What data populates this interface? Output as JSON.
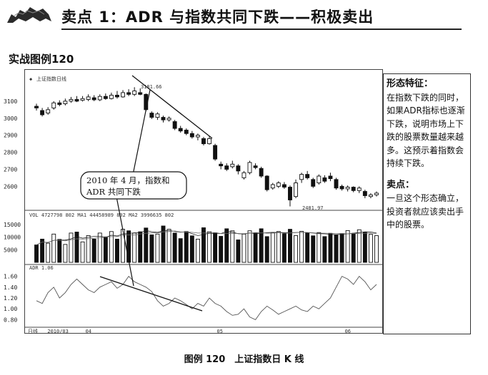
{
  "header": {
    "title": "卖点 1：ADR 与指数共同下跌——积极卖出"
  },
  "section_label": "实战图例120",
  "caption": "图例 120　上证指数日 K 线",
  "callout": {
    "heading1": "形态特征：",
    "body1": "在指数下跌的同时，如果ADR指标也逐渐下跌，说明市场上下跌的股票数量越来越多。这预示着指数会持续下跌。",
    "heading2": "卖点：",
    "body2": "一旦这个形态确立，投资者就应该卖出手中的股票。"
  },
  "chart": {
    "index_label": "上证指数日线",
    "peak_label": "3181.66",
    "trough_label": "2481.97",
    "annotation_line1": "2010 年 4 月，指数和",
    "annotation_line2": "ADR 共同下跌",
    "volume_info": "VOL 4727798 802   MA1 44458989 802   MA2 3996635 802",
    "adr_info": "ADR 1.06",
    "bottom_label": "日线",
    "x_labels": [
      "2010/03",
      "04",
      "05",
      "06"
    ]
  },
  "chart_data": [
    {
      "type": "candlestick",
      "title": "上证指数日线",
      "ylim": [
        2480,
        3200
      ],
      "yticks": [
        2600,
        2700,
        2800,
        2900,
        3000,
        3100
      ],
      "ytick_labels": [
        "2600",
        "2700",
        "2800",
        "2900",
        "3000",
        "3100"
      ],
      "candles": [
        {
          "o": 3070,
          "c": 3060,
          "h": 3085,
          "l": 3045
        },
        {
          "o": 3045,
          "c": 3020,
          "h": 3060,
          "l": 3010
        },
        {
          "o": 3030,
          "c": 3050,
          "h": 3065,
          "l": 3020
        },
        {
          "o": 3060,
          "c": 3090,
          "h": 3100,
          "l": 3050
        },
        {
          "o": 3090,
          "c": 3080,
          "h": 3105,
          "l": 3070
        },
        {
          "o": 3085,
          "c": 3100,
          "h": 3115,
          "l": 3075
        },
        {
          "o": 3100,
          "c": 3110,
          "h": 3125,
          "l": 3090
        },
        {
          "o": 3110,
          "c": 3100,
          "h": 3130,
          "l": 3095
        },
        {
          "o": 3105,
          "c": 3115,
          "h": 3130,
          "l": 3098
        },
        {
          "o": 3110,
          "c": 3125,
          "h": 3140,
          "l": 3100
        },
        {
          "o": 3120,
          "c": 3108,
          "h": 3135,
          "l": 3100
        },
        {
          "o": 3108,
          "c": 3128,
          "h": 3140,
          "l": 3100
        },
        {
          "o": 3128,
          "c": 3115,
          "h": 3145,
          "l": 3108
        },
        {
          "o": 3115,
          "c": 3135,
          "h": 3150,
          "l": 3110
        },
        {
          "o": 3135,
          "c": 3125,
          "h": 3160,
          "l": 3115
        },
        {
          "o": 3125,
          "c": 3150,
          "h": 3165,
          "l": 3120
        },
        {
          "o": 3150,
          "c": 3140,
          "h": 3170,
          "l": 3130
        },
        {
          "o": 3140,
          "c": 3160,
          "h": 3182,
          "l": 3130
        },
        {
          "o": 3150,
          "c": 3140,
          "h": 3175,
          "l": 3135
        },
        {
          "o": 3140,
          "c": 3050,
          "h": 3145,
          "l": 3040
        },
        {
          "o": 3030,
          "c": 3005,
          "h": 3040,
          "l": 2995
        },
        {
          "o": 3005,
          "c": 3025,
          "h": 3035,
          "l": 2990
        },
        {
          "o": 3005,
          "c": 2990,
          "h": 3015,
          "l": 2975
        },
        {
          "o": 2990,
          "c": 3000,
          "h": 3010,
          "l": 2980
        },
        {
          "o": 2980,
          "c": 2940,
          "h": 2990,
          "l": 2930
        },
        {
          "o": 2940,
          "c": 2925,
          "h": 2955,
          "l": 2915
        },
        {
          "o": 2930,
          "c": 2910,
          "h": 2940,
          "l": 2900
        },
        {
          "o": 2910,
          "c": 2890,
          "h": 2925,
          "l": 2880
        },
        {
          "o": 2890,
          "c": 2900,
          "h": 2910,
          "l": 2870
        },
        {
          "o": 2880,
          "c": 2850,
          "h": 2890,
          "l": 2840
        },
        {
          "o": 2850,
          "c": 2880,
          "h": 2895,
          "l": 2845
        },
        {
          "o": 2840,
          "c": 2760,
          "h": 2850,
          "l": 2750
        },
        {
          "o": 2730,
          "c": 2720,
          "h": 2745,
          "l": 2700
        },
        {
          "o": 2720,
          "c": 2700,
          "h": 2735,
          "l": 2690
        },
        {
          "o": 2715,
          "c": 2730,
          "h": 2750,
          "l": 2705
        },
        {
          "o": 2720,
          "c": 2690,
          "h": 2730,
          "l": 2670
        },
        {
          "o": 2650,
          "c": 2680,
          "h": 2690,
          "l": 2640
        },
        {
          "o": 2680,
          "c": 2740,
          "h": 2750,
          "l": 2670
        },
        {
          "o": 2720,
          "c": 2710,
          "h": 2735,
          "l": 2700
        },
        {
          "o": 2705,
          "c": 2660,
          "h": 2715,
          "l": 2650
        },
        {
          "o": 2660,
          "c": 2580,
          "h": 2665,
          "l": 2570
        },
        {
          "o": 2590,
          "c": 2610,
          "h": 2620,
          "l": 2580
        },
        {
          "o": 2600,
          "c": 2620,
          "h": 2630,
          "l": 2590
        },
        {
          "o": 2610,
          "c": 2595,
          "h": 2625,
          "l": 2585
        },
        {
          "o": 2595,
          "c": 2520,
          "h": 2605,
          "l": 2482
        },
        {
          "o": 2540,
          "c": 2620,
          "h": 2640,
          "l": 2530
        },
        {
          "o": 2640,
          "c": 2670,
          "h": 2680,
          "l": 2620
        },
        {
          "o": 2670,
          "c": 2650,
          "h": 2690,
          "l": 2640
        },
        {
          "o": 2640,
          "c": 2600,
          "h": 2650,
          "l": 2590
        },
        {
          "o": 2620,
          "c": 2660,
          "h": 2670,
          "l": 2610
        },
        {
          "o": 2650,
          "c": 2630,
          "h": 2665,
          "l": 2620
        },
        {
          "o": 2660,
          "c": 2645,
          "h": 2680,
          "l": 2630
        },
        {
          "o": 2640,
          "c": 2590,
          "h": 2650,
          "l": 2580
        },
        {
          "o": 2600,
          "c": 2585,
          "h": 2610,
          "l": 2575
        },
        {
          "o": 2585,
          "c": 2595,
          "h": 2605,
          "l": 2570
        },
        {
          "o": 2595,
          "c": 2575,
          "h": 2600,
          "l": 2565
        },
        {
          "o": 2575,
          "c": 2590,
          "h": 2600,
          "l": 2560
        },
        {
          "o": 2570,
          "c": 2545,
          "h": 2580,
          "l": 2530
        },
        {
          "o": 2540,
          "c": 2550,
          "h": 2560,
          "l": 2530
        },
        {
          "o": 2550,
          "c": 2560,
          "h": 2570,
          "l": 2540
        }
      ]
    },
    {
      "type": "bar",
      "title": "VOL",
      "ylim": [
        0,
        17500
      ],
      "yticks": [
        5000,
        10000,
        15000
      ],
      "ytick_labels": [
        "5000",
        "10000",
        "15000"
      ],
      "values": [
        6900,
        9200,
        7600,
        11200,
        9100,
        7100,
        11600,
        12000,
        8100,
        10600,
        9200,
        11600,
        10100,
        12200,
        9200,
        13100,
        12500,
        11600,
        12100,
        13600,
        10900,
        11200,
        14400,
        13100,
        11600,
        9400,
        12200,
        10500,
        9200,
        13700,
        12100,
        11700,
        10300,
        13300,
        12500,
        8900,
        11200,
        12500,
        11700,
        13300,
        10200,
        11800,
        12200,
        11300,
        13100,
        10600,
        12300,
        11600,
        10500,
        11800,
        10200,
        11500,
        10800,
        11400,
        12600,
        11500,
        12900,
        12000,
        11100,
        10600
      ]
    },
    {
      "type": "line",
      "title": "ADR",
      "ylim": [
        0.7,
        1.7
      ],
      "yticks": [
        0.8,
        1.0,
        1.2,
        1.4,
        1.6
      ],
      "ytick_labels": [
        "0.80",
        "1.00",
        "1.20",
        "1.40",
        "1.60"
      ],
      "values": [
        1.15,
        1.1,
        1.3,
        1.4,
        1.2,
        1.3,
        1.45,
        1.55,
        1.45,
        1.35,
        1.3,
        1.4,
        1.45,
        1.5,
        1.38,
        1.45,
        1.6,
        1.5,
        1.45,
        1.4,
        1.32,
        1.15,
        1.05,
        1.1,
        1.2,
        1.15,
        1.08,
        1.0,
        1.1,
        1.05,
        1.2,
        1.1,
        1.05,
        0.95,
        0.88,
        0.9,
        1.0,
        0.85,
        0.8,
        0.95,
        1.05,
        0.98,
        0.9,
        0.95,
        1.0,
        1.05,
        0.98,
        0.95,
        1.05,
        1.0,
        1.1,
        1.2,
        1.4,
        1.6,
        1.55,
        1.45,
        1.6,
        1.5,
        1.35,
        1.45
      ]
    }
  ]
}
